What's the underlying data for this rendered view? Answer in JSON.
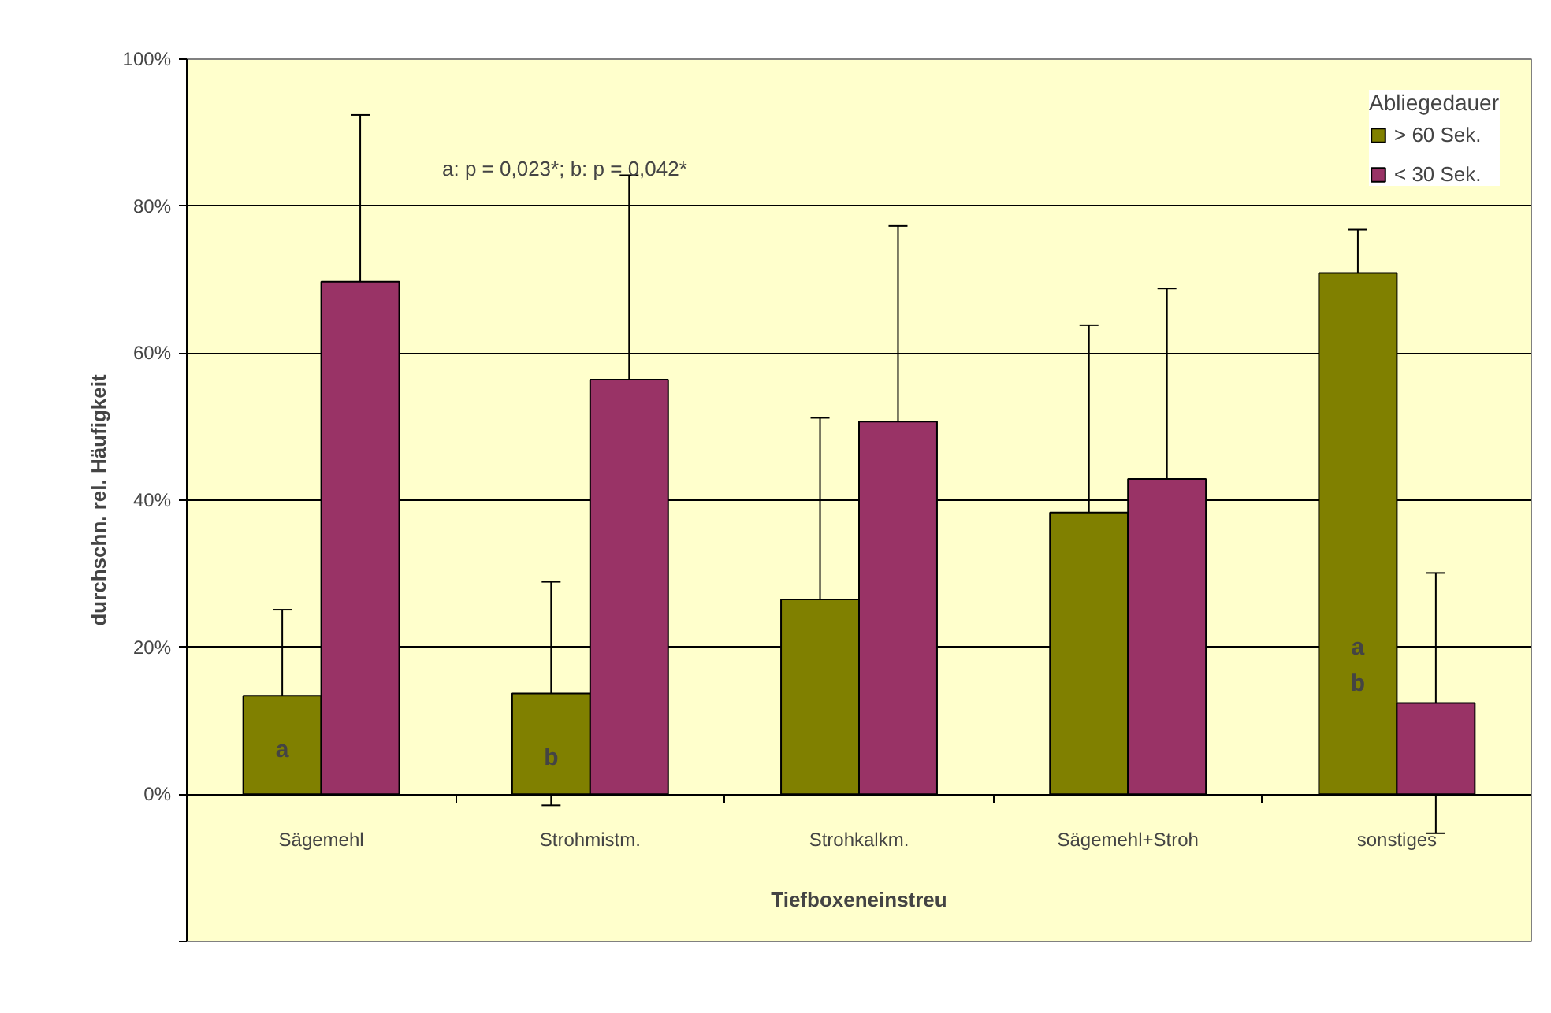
{
  "chart_data": {
    "type": "bar",
    "xlabel": "Tiefboxeneinstreu",
    "ylabel": "durchschn. rel. Häufigkeit",
    "legend_title": "Abliegedauer",
    "categories": [
      "Sägemehl",
      "Strohmistm.",
      "Strohkalkm.",
      "Sägemehl+Stroh",
      "sonstiges"
    ],
    "series": [
      {
        "name": "> 60 Sek.",
        "color": "#808000",
        "values": [
          13.4,
          13.7,
          26.5,
          38.3,
          70.9
        ],
        "errors": [
          11.7,
          15.2,
          24.7,
          25.5,
          5.9
        ]
      },
      {
        "name": "< 30 Sek.",
        "color": "#993366",
        "values": [
          69.7,
          56.4,
          50.7,
          42.9,
          12.4
        ],
        "errors": [
          22.7,
          27.8,
          26.6,
          25.9,
          17.7
        ]
      }
    ],
    "ylim": [
      -20,
      100
    ],
    "yticks": [
      {
        "value": -20,
        "label": null
      },
      {
        "value": 0,
        "label": "0%"
      },
      {
        "value": 20,
        "label": "20%"
      },
      {
        "value": 40,
        "label": "40%"
      },
      {
        "value": 60,
        "label": "60%"
      },
      {
        "value": 80,
        "label": "80%"
      },
      {
        "value": 100,
        "label": "100%"
      }
    ],
    "grid": "y",
    "legend": "top right",
    "annotations": [
      "a: p = 0,023*;    b: p = 0,042*",
      {
        "text": "a",
        "x": "Sägemehl",
        "y": 6
      },
      {
        "text": "b",
        "x": "Strohmistm.",
        "y": 5
      },
      {
        "text": "a",
        "x": "sonstiges",
        "y": 20
      },
      {
        "text": "b",
        "x": "sonstiges",
        "y": 15
      }
    ]
  }
}
